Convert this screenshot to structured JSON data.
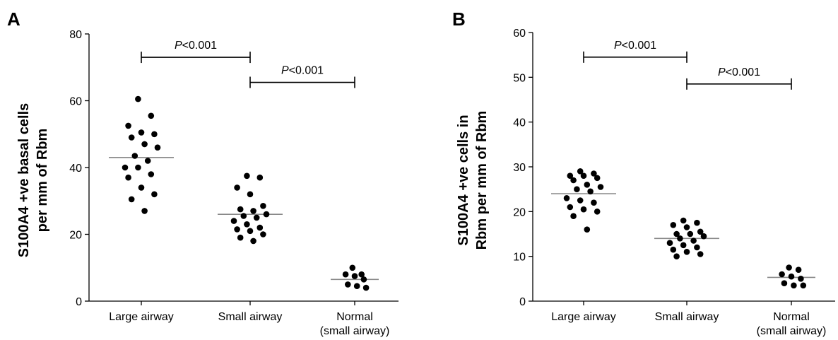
{
  "chart_data": [
    {
      "type": "scatter",
      "panel_label": "A",
      "categories": [
        "Large airway",
        "Small airway",
        "Normal|(small airway)"
      ],
      "ylabel": "S100A4 +ve basal cells|per mm of Rbm",
      "ylim": [
        0,
        80
      ],
      "yticks": [
        0,
        20,
        40,
        60,
        80
      ],
      "grid": false,
      "series": [
        {
          "points": [
            {
              "c": 0,
              "y": 60.5
            },
            {
              "c": 0,
              "y": 55.5
            },
            {
              "c": 0,
              "y": 52.5
            },
            {
              "c": 0,
              "y": 50.5
            },
            {
              "c": 0,
              "y": 50
            },
            {
              "c": 0,
              "y": 49
            },
            {
              "c": 0,
              "y": 47
            },
            {
              "c": 0,
              "y": 46
            },
            {
              "c": 0,
              "y": 43.5
            },
            {
              "c": 0,
              "y": 42
            },
            {
              "c": 0,
              "y": 40
            },
            {
              "c": 0,
              "y": 40
            },
            {
              "c": 0,
              "y": 38
            },
            {
              "c": 0,
              "y": 37
            },
            {
              "c": 0,
              "y": 34
            },
            {
              "c": 0,
              "y": 32
            },
            {
              "c": 0,
              "y": 30.5
            },
            {
              "c": 0,
              "y": 27
            },
            {
              "c": 1,
              "y": 37.5
            },
            {
              "c": 1,
              "y": 37
            },
            {
              "c": 1,
              "y": 34
            },
            {
              "c": 1,
              "y": 32
            },
            {
              "c": 1,
              "y": 28.5
            },
            {
              "c": 1,
              "y": 27.5
            },
            {
              "c": 1,
              "y": 27
            },
            {
              "c": 1,
              "y": 26
            },
            {
              "c": 1,
              "y": 25.5
            },
            {
              "c": 1,
              "y": 25
            },
            {
              "c": 1,
              "y": 24
            },
            {
              "c": 1,
              "y": 23
            },
            {
              "c": 1,
              "y": 22
            },
            {
              "c": 1,
              "y": 21.5
            },
            {
              "c": 1,
              "y": 21
            },
            {
              "c": 1,
              "y": 20
            },
            {
              "c": 1,
              "y": 19
            },
            {
              "c": 1,
              "y": 18
            },
            {
              "c": 2,
              "y": 10
            },
            {
              "c": 2,
              "y": 8
            },
            {
              "c": 2,
              "y": 8
            },
            {
              "c": 2,
              "y": 7.5
            },
            {
              "c": 2,
              "y": 6.5
            },
            {
              "c": 2,
              "y": 5
            },
            {
              "c": 2,
              "y": 4.5
            },
            {
              "c": 2,
              "y": 4
            }
          ]
        }
      ],
      "medians": [
        43,
        26,
        6.5
      ],
      "annotations": [
        {
          "text_prefix": "P",
          "text_suffix": "<0.001",
          "from": 0,
          "to": 1,
          "y": 73
        },
        {
          "text_prefix": "P",
          "text_suffix": "<0.001",
          "from": 1,
          "to": 2,
          "y": 65.5
        }
      ]
    },
    {
      "type": "scatter",
      "panel_label": "B",
      "categories": [
        "Large airway",
        "Small airway",
        "Normal|(small airway)"
      ],
      "ylabel": "S100A4 +ve cells in|Rbm per mm of Rbm",
      "ylim": [
        0,
        60
      ],
      "yticks": [
        0,
        10,
        20,
        30,
        40,
        50,
        60
      ],
      "grid": false,
      "series": [
        {
          "points": [
            {
              "c": 0,
              "y": 29
            },
            {
              "c": 0,
              "y": 28.5
            },
            {
              "c": 0,
              "y": 28
            },
            {
              "c": 0,
              "y": 28
            },
            {
              "c": 0,
              "y": 27.5
            },
            {
              "c": 0,
              "y": 27
            },
            {
              "c": 0,
              "y": 26
            },
            {
              "c": 0,
              "y": 25.5
            },
            {
              "c": 0,
              "y": 25
            },
            {
              "c": 0,
              "y": 24.5
            },
            {
              "c": 0,
              "y": 23
            },
            {
              "c": 0,
              "y": 22.5
            },
            {
              "c": 0,
              "y": 22
            },
            {
              "c": 0,
              "y": 21
            },
            {
              "c": 0,
              "y": 20.5
            },
            {
              "c": 0,
              "y": 20
            },
            {
              "c": 0,
              "y": 19
            },
            {
              "c": 0,
              "y": 16
            },
            {
              "c": 1,
              "y": 18
            },
            {
              "c": 1,
              "y": 17.5
            },
            {
              "c": 1,
              "y": 17
            },
            {
              "c": 1,
              "y": 16.5
            },
            {
              "c": 1,
              "y": 15.5
            },
            {
              "c": 1,
              "y": 15
            },
            {
              "c": 1,
              "y": 15
            },
            {
              "c": 1,
              "y": 14.5
            },
            {
              "c": 1,
              "y": 14
            },
            {
              "c": 1,
              "y": 13.5
            },
            {
              "c": 1,
              "y": 13
            },
            {
              "c": 1,
              "y": 12.5
            },
            {
              "c": 1,
              "y": 12
            },
            {
              "c": 1,
              "y": 11.5
            },
            {
              "c": 1,
              "y": 11
            },
            {
              "c": 1,
              "y": 10.5
            },
            {
              "c": 1,
              "y": 10
            },
            {
              "c": 2,
              "y": 7.5
            },
            {
              "c": 2,
              "y": 7
            },
            {
              "c": 2,
              "y": 6
            },
            {
              "c": 2,
              "y": 5.5
            },
            {
              "c": 2,
              "y": 5
            },
            {
              "c": 2,
              "y": 4
            },
            {
              "c": 2,
              "y": 3.5
            },
            {
              "c": 2,
              "y": 3.5
            }
          ]
        }
      ],
      "medians": [
        24,
        14,
        5.3
      ],
      "annotations": [
        {
          "text_prefix": "P",
          "text_suffix": "<0.001",
          "from": 0,
          "to": 1,
          "y": 54.5
        },
        {
          "text_prefix": "P",
          "text_suffix": "<0.001",
          "from": 1,
          "to": 2,
          "y": 48.5
        }
      ]
    }
  ]
}
